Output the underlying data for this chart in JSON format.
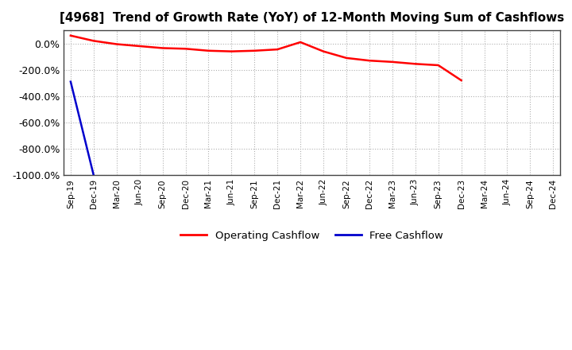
{
  "title": "[4968]  Trend of Growth Rate (YoY) of 12-Month Moving Sum of Cashflows",
  "title_fontsize": 11,
  "ylim": [
    -1000,
    100
  ],
  "yticks": [
    0,
    -200,
    -400,
    -600,
    -800,
    -1000
  ],
  "background_color": "#ffffff",
  "plot_bg_color": "#ffffff",
  "grid_color": "#b0b0b0",
  "operating_color": "#ff0000",
  "free_color": "#0000cc",
  "operating_cashflow": {
    "dates": [
      "Sep-19",
      "Dec-19",
      "Mar-20",
      "Jun-20",
      "Sep-20",
      "Dec-20",
      "Mar-21",
      "Jun-21",
      "Sep-21",
      "Dec-21",
      "Mar-22",
      "Jun-22",
      "Sep-22",
      "Dec-22",
      "Mar-23",
      "Jun-23",
      "Sep-23",
      "Dec-23",
      "Mar-24",
      "Jun-24",
      "Sep-24",
      "Dec-24"
    ],
    "values": [
      60,
      20,
      -5,
      -20,
      -35,
      -40,
      -55,
      -60,
      -55,
      -45,
      10,
      -60,
      -110,
      -130,
      -140,
      -155,
      -165,
      -280,
      null,
      null,
      null,
      null
    ]
  },
  "free_cashflow": {
    "dates": [
      "Sep-19",
      "Dec-19",
      "Mar-20",
      "Jun-20",
      "Sep-20",
      "Dec-20",
      "Mar-21",
      "Jun-21",
      "Sep-21",
      "Dec-21",
      "Mar-22",
      "Jun-22",
      "Sep-22",
      "Dec-22",
      "Mar-23",
      "Jun-23",
      "Sep-23",
      "Dec-23",
      "Mar-24",
      "Jun-24",
      "Sep-24",
      "Dec-24"
    ],
    "values": [
      -290,
      -1000,
      null,
      null,
      null,
      null,
      null,
      null,
      null,
      null,
      null,
      null,
      null,
      null,
      null,
      null,
      null,
      null,
      null,
      null,
      null,
      null
    ]
  },
  "xtick_labels": [
    "Sep-19",
    "Dec-19",
    "Mar-20",
    "Jun-20",
    "Sep-20",
    "Dec-20",
    "Mar-21",
    "Jun-21",
    "Sep-21",
    "Dec-21",
    "Mar-22",
    "Jun-22",
    "Sep-22",
    "Dec-22",
    "Mar-23",
    "Jun-23",
    "Sep-23",
    "Dec-23",
    "Mar-24",
    "Jun-24",
    "Sep-24",
    "Dec-24"
  ],
  "legend_entries": [
    "Operating Cashflow",
    "Free Cashflow"
  ],
  "legend_colors": [
    "#ff0000",
    "#0000cc"
  ]
}
